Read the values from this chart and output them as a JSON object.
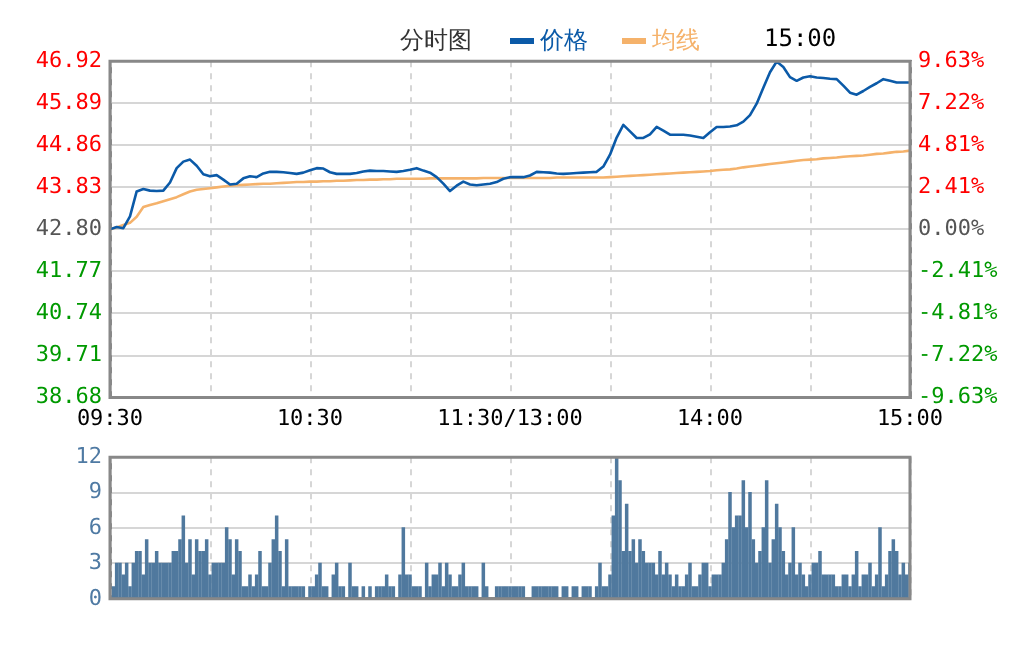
{
  "chart_data": [
    {
      "type": "line",
      "title": "分时图",
      "annotations": [
        "15:00"
      ],
      "legend": "top",
      "marker": "none",
      "grid": true,
      "categories": [
        "09:30",
        null,
        null,
        null,
        null,
        null,
        null,
        null,
        null,
        null,
        null,
        null,
        null,
        null,
        null,
        null,
        null,
        null,
        null,
        null,
        null,
        null,
        null,
        null,
        null,
        null,
        null,
        null,
        null,
        null,
        "10:30",
        null,
        null,
        null,
        null,
        null,
        null,
        null,
        null,
        null,
        null,
        null,
        null,
        null,
        null,
        null,
        null,
        null,
        null,
        null,
        null,
        null,
        null,
        null,
        null,
        null,
        null,
        null,
        null,
        null,
        "11:30/13:00",
        null,
        null,
        null,
        null,
        null,
        null,
        null,
        null,
        null,
        null,
        null,
        null,
        null,
        null,
        null,
        null,
        null,
        null,
        null,
        null,
        null,
        null,
        null,
        null,
        null,
        null,
        null,
        null,
        null,
        "14:00",
        null,
        null,
        null,
        null,
        null,
        null,
        null,
        null,
        null,
        null,
        null,
        null,
        null,
        null,
        null,
        null,
        null,
        null,
        null,
        null,
        null,
        null,
        null,
        null,
        null,
        null,
        null,
        null,
        null,
        "15:00"
      ],
      "ylim": [
        38.68,
        46.92
      ],
      "yticks": [
        {
          "value": 38.68,
          "label": "38.68"
        },
        {
          "value": 39.71,
          "label": "39.71"
        },
        {
          "value": 40.74,
          "label": "40.74"
        },
        {
          "value": 41.77,
          "label": "41.77"
        },
        {
          "value": 42.8,
          "label": "42.80"
        },
        {
          "value": 43.83,
          "label": "43.83"
        },
        {
          "value": 44.86,
          "label": "44.86"
        },
        {
          "value": 45.89,
          "label": "45.89"
        },
        {
          "value": 46.92,
          "label": "46.92"
        }
      ],
      "y2lim": [
        -9.63,
        9.63
      ],
      "y2ticks": [
        {
          "value": -9.63,
          "label": "-9.63%"
        },
        {
          "value": -7.22,
          "label": "-7.22%"
        },
        {
          "value": -4.81,
          "label": "-4.81%"
        },
        {
          "value": -2.41,
          "label": "-2.41%"
        },
        {
          "value": 0,
          "label": "0.00%"
        },
        {
          "value": 2.41,
          "label": "2.41%"
        },
        {
          "value": 4.81,
          "label": "4.81%"
        },
        {
          "value": 7.22,
          "label": "7.22%"
        },
        {
          "value": 9.63,
          "label": "9.63%"
        }
      ],
      "series": [
        {
          "name": "价格",
          "color": "#0b5aa8",
          "values": [
            42.8,
            42.86,
            42.83,
            43.12,
            43.73,
            43.79,
            43.75,
            43.74,
            43.75,
            43.95,
            44.3,
            44.46,
            44.51,
            44.36,
            44.15,
            44.1,
            44.13,
            44.02,
            43.9,
            43.92,
            44.05,
            44.1,
            44.08,
            44.17,
            44.21,
            44.21,
            44.2,
            44.18,
            44.16,
            44.19,
            44.25,
            44.3,
            44.29,
            44.2,
            44.16,
            44.16,
            44.16,
            44.18,
            44.22,
            44.24,
            44.23,
            44.23,
            44.22,
            44.21,
            44.23,
            44.26,
            44.3,
            44.24,
            44.19,
            44.08,
            43.92,
            43.74,
            43.87,
            43.97,
            43.9,
            43.88,
            43.9,
            43.92,
            43.96,
            44.04,
            44.08,
            44.08,
            44.08,
            44.12,
            44.21,
            44.2,
            44.19,
            44.17,
            44.16,
            44.17,
            44.18,
            44.19,
            44.2,
            44.21,
            44.34,
            44.63,
            45.05,
            45.36,
            45.2,
            45.04,
            45.04,
            45.13,
            45.31,
            45.22,
            45.12,
            45.12,
            45.12,
            45.1,
            45.07,
            45.04,
            45.18,
            45.31,
            45.31,
            45.32,
            45.35,
            45.44,
            45.6,
            45.88,
            46.27,
            46.65,
            46.91,
            46.78,
            46.53,
            46.44,
            46.52,
            46.55,
            46.52,
            46.51,
            46.49,
            46.48,
            46.32,
            46.15,
            46.1,
            46.19,
            46.29,
            46.38,
            46.48,
            46.44,
            46.4,
            46.4,
            46.4
          ]
        },
        {
          "name": "均线",
          "color": "#f5b26b",
          "values": [
            42.8,
            42.85,
            42.91,
            42.96,
            43.11,
            43.35,
            43.4,
            43.44,
            43.49,
            43.54,
            43.59,
            43.66,
            43.73,
            43.77,
            43.79,
            43.81,
            43.83,
            43.85,
            43.87,
            43.88,
            43.89,
            43.9,
            43.91,
            43.92,
            43.92,
            43.93,
            43.94,
            43.95,
            43.96,
            43.96,
            43.97,
            43.97,
            43.98,
            43.98,
            43.99,
            43.99,
            44.0,
            44.01,
            44.01,
            44.02,
            44.02,
            44.03,
            44.03,
            44.04,
            44.04,
            44.04,
            44.04,
            44.04,
            44.05,
            44.05,
            44.05,
            44.05,
            44.05,
            44.05,
            44.05,
            44.05,
            44.06,
            44.06,
            44.06,
            44.06,
            44.06,
            44.06,
            44.06,
            44.06,
            44.06,
            44.06,
            44.06,
            44.07,
            44.07,
            44.07,
            44.07,
            44.07,
            44.07,
            44.07,
            44.07,
            44.08,
            44.09,
            44.1,
            44.11,
            44.12,
            44.13,
            44.14,
            44.15,
            44.16,
            44.17,
            44.18,
            44.19,
            44.2,
            44.21,
            44.22,
            44.23,
            44.25,
            44.26,
            44.27,
            44.29,
            44.32,
            44.34,
            44.36,
            44.38,
            44.4,
            44.42,
            44.44,
            44.46,
            44.48,
            44.5,
            44.51,
            44.52,
            44.54,
            44.55,
            44.56,
            44.58,
            44.59,
            44.6,
            44.61,
            44.63,
            44.65,
            44.66,
            44.68,
            44.7,
            44.71,
            44.73
          ]
        }
      ]
    },
    {
      "type": "bar",
      "grid": true,
      "categories": [
        null,
        null,
        null,
        null,
        null,
        null,
        null,
        null,
        null,
        null,
        null,
        null,
        null,
        null,
        null,
        null,
        null,
        null,
        null,
        null,
        null,
        null,
        null,
        null,
        null,
        null,
        null,
        null,
        null,
        null,
        null,
        null,
        null,
        null,
        null,
        null,
        null,
        null,
        null,
        null,
        null,
        null,
        null,
        null,
        null,
        null,
        null,
        null,
        null,
        null,
        null,
        null,
        null,
        null,
        null,
        null,
        null,
        null,
        null,
        null,
        null,
        null,
        null,
        null,
        null,
        null,
        null,
        null,
        null,
        null,
        null,
        null,
        null,
        null,
        null,
        null,
        null,
        null,
        null,
        null,
        null,
        null,
        null,
        null,
        null,
        null,
        null,
        null,
        null,
        null,
        null,
        null,
        null,
        null,
        null,
        null,
        null,
        null,
        null,
        null,
        null,
        null,
        null,
        null,
        null,
        null,
        null,
        null,
        null,
        null,
        null,
        null,
        null,
        null,
        null,
        null,
        null,
        null,
        null,
        null,
        null,
        null,
        null,
        null,
        null,
        null,
        null,
        null,
        null,
        null,
        null,
        null,
        null,
        null,
        null,
        null,
        null,
        null,
        null,
        null,
        null,
        null,
        null,
        null,
        null,
        null,
        null,
        null,
        null,
        null,
        null,
        null,
        null,
        null,
        null,
        null,
        null,
        null,
        null,
        null,
        null,
        null,
        null,
        null,
        null,
        null,
        null,
        null,
        null,
        null,
        null,
        null,
        null,
        null,
        null,
        null,
        null,
        null,
        null,
        null,
        null,
        null,
        null,
        null,
        null,
        null,
        null,
        null,
        null,
        null,
        null,
        null,
        null,
        null,
        null,
        null,
        null,
        null,
        null,
        null,
        null,
        null,
        null,
        null,
        null,
        null,
        null,
        null,
        null,
        null,
        null,
        null,
        null,
        null,
        null,
        null,
        null,
        null,
        null,
        null,
        null,
        null,
        null,
        null,
        null,
        null,
        null,
        null,
        null,
        null,
        null,
        null,
        null,
        null,
        null,
        null,
        null,
        null,
        null,
        null,
        null
      ],
      "ylim": [
        0,
        12
      ],
      "yticks": [
        0,
        3,
        6,
        9,
        12
      ],
      "series": [
        {
          "color": "#50799e",
          "values": [
            null,
            1,
            3,
            3,
            2,
            3,
            1,
            3,
            4,
            4,
            2,
            5,
            3,
            3,
            4,
            3,
            3,
            3,
            3,
            4,
            4,
            5,
            7,
            3,
            5,
            2,
            5,
            4,
            4,
            5,
            2,
            3,
            3,
            3,
            3,
            6,
            5,
            2,
            5,
            4,
            1,
            1,
            2,
            1,
            2,
            4,
            1,
            1,
            3,
            5,
            7,
            4,
            1,
            5,
            1,
            1,
            1,
            1,
            1,
            0,
            1,
            1,
            2,
            3,
            1,
            1,
            0,
            2,
            3,
            1,
            1,
            0,
            3,
            1,
            1,
            0,
            1,
            0,
            1,
            0,
            1,
            1,
            1,
            2,
            1,
            1,
            0,
            2,
            6,
            2,
            2,
            1,
            1,
            1,
            0,
            3,
            1,
            2,
            2,
            3,
            1,
            3,
            2,
            1,
            1,
            2,
            3,
            1,
            1,
            1,
            1,
            0,
            3,
            1,
            0,
            0,
            1,
            1,
            1,
            1,
            1,
            1,
            1,
            1,
            1,
            0,
            0,
            1,
            1,
            1,
            1,
            1,
            1,
            1,
            1,
            0,
            1,
            1,
            0,
            1,
            1,
            0,
            1,
            1,
            1,
            0,
            1,
            3,
            1,
            1,
            2,
            7,
            12,
            10,
            4,
            8,
            4,
            5,
            3,
            5,
            4,
            3,
            3,
            3,
            2,
            4,
            2,
            3,
            2,
            1,
            2,
            1,
            1,
            2,
            3,
            1,
            1,
            2,
            3,
            3,
            1,
            2,
            2,
            2,
            3,
            5,
            9,
            6,
            7,
            7,
            10,
            6,
            9,
            5,
            3,
            4,
            6,
            10,
            3,
            5,
            8,
            6,
            4,
            2,
            3,
            6,
            2,
            3,
            2,
            1,
            2,
            3,
            3,
            4,
            2,
            2,
            2,
            2,
            1,
            1,
            2,
            2,
            1,
            2,
            4,
            1,
            2,
            2,
            3,
            1,
            2,
            6,
            1,
            2,
            4,
            5,
            4,
            2,
            3,
            2,
            3
          ]
        }
      ]
    }
  ]
}
